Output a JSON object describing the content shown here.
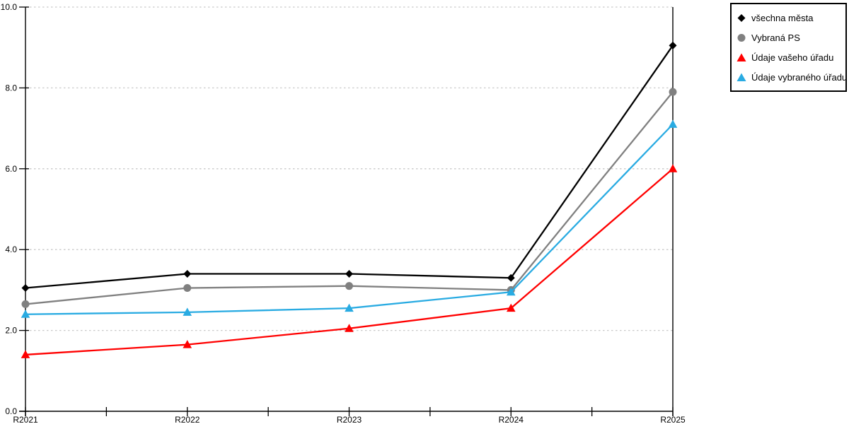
{
  "chart_data": {
    "type": "line",
    "title": "",
    "xlabel": "",
    "ylabel": "",
    "categories": [
      "R2021",
      "R2022",
      "R2023",
      "R2024",
      "R2025"
    ],
    "series": [
      {
        "name": "všechna města",
        "marker": "diamond",
        "color": "#000000",
        "values": [
          3.05,
          3.4,
          3.4,
          3.3,
          9.05
        ]
      },
      {
        "name": "Vybraná PS",
        "marker": "circle",
        "color": "#808080",
        "values": [
          2.65,
          3.05,
          3.1,
          3.0,
          7.9
        ]
      },
      {
        "name": "Údaje vašeho úřadu",
        "marker": "triangle",
        "color": "#ff0000",
        "values": [
          1.4,
          1.65,
          2.05,
          2.55,
          6.0
        ]
      },
      {
        "name": "Údaje vybraného úřadu",
        "marker": "triangle",
        "color": "#29abe2",
        "values": [
          2.4,
          2.45,
          2.55,
          2.95,
          7.1
        ]
      }
    ],
    "ylim": [
      0,
      10
    ],
    "ytick_step": 2,
    "ytick_labels": [
      "0.0",
      "2.0",
      "4.0",
      "6.0",
      "8.0",
      "10.0"
    ],
    "grid": "dashed-horizontal",
    "legend_position": "top-right"
  },
  "colors": {
    "background": "#ffffff",
    "axis": "#000000",
    "grid": "#c9c9c9",
    "text": "#000000"
  }
}
